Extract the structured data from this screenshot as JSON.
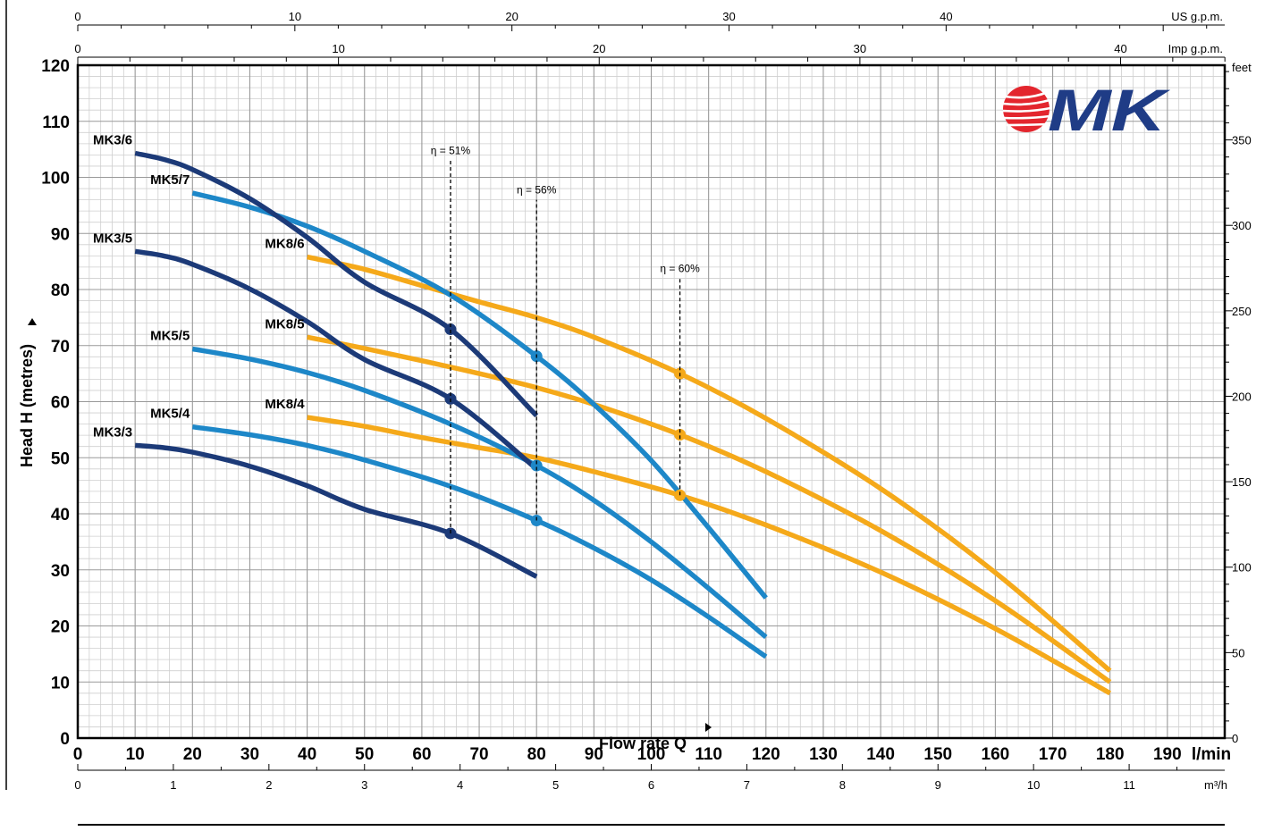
{
  "chart_data": {
    "type": "line",
    "ylabel": "Head H (metres)",
    "xlabel": "Flow rate Q",
    "x_unit": "l/min",
    "xlim": [
      0,
      200
    ],
    "ylim": [
      0,
      120
    ],
    "x_ticks": [
      0,
      10,
      20,
      30,
      40,
      50,
      60,
      70,
      80,
      90,
      100,
      110,
      120,
      130,
      140,
      150,
      160,
      170,
      180,
      190
    ],
    "y_ticks": [
      0,
      10,
      20,
      30,
      40,
      50,
      60,
      70,
      80,
      90,
      100,
      110,
      120
    ],
    "grid": true,
    "secondary_axes": {
      "feet": {
        "label": "feet",
        "ticks": [
          0,
          50,
          100,
          150,
          200,
          250,
          300,
          350
        ]
      },
      "m3h": {
        "label": "m³/h",
        "ticks": [
          0,
          1,
          2,
          3,
          4,
          5,
          6,
          7,
          8,
          9,
          10,
          11
        ]
      },
      "us_gpm": {
        "label": "US g.p.m.",
        "ticks": [
          0,
          10,
          20,
          30,
          40
        ]
      },
      "imp_gpm": {
        "label": "Imp g.p.m.",
        "ticks": [
          0,
          10,
          20,
          30,
          40
        ]
      }
    },
    "series": [
      {
        "name": "MK3/6",
        "color": "#1c3a78",
        "x": [
          10,
          15,
          20,
          30,
          40,
          50,
          65,
          80
        ],
        "y": [
          104.3,
          103.2,
          101.4,
          96.2,
          89.3,
          81.3,
          72.9,
          57.5
        ],
        "marker_x": [
          65
        ]
      },
      {
        "name": "MK3/5",
        "color": "#1c3a78",
        "x": [
          10,
          15,
          20,
          30,
          40,
          50,
          65,
          80
        ],
        "y": [
          86.8,
          86.0,
          84.5,
          80.1,
          74.3,
          67.5,
          60.5,
          48.0
        ],
        "marker_x": [
          65
        ]
      },
      {
        "name": "MK3/3",
        "color": "#1c3a78",
        "x": [
          10,
          15,
          20,
          30,
          40,
          50,
          65,
          80
        ],
        "y": [
          52.2,
          51.8,
          51.0,
          48.5,
          45.0,
          40.8,
          36.5,
          28.8
        ],
        "marker_x": [
          65
        ]
      },
      {
        "name": "MK5/7",
        "color": "#1d87c8",
        "x": [
          20,
          30,
          40,
          50,
          65,
          80,
          90,
          100,
          110,
          120
        ],
        "y": [
          97.2,
          94.7,
          91.3,
          86.8,
          79.0,
          68.1,
          59.5,
          49.5,
          37.5,
          25.0
        ],
        "marker_x": [
          80
        ]
      },
      {
        "name": "MK5/5",
        "color": "#1d87c8",
        "x": [
          20,
          30,
          40,
          50,
          65,
          80,
          90,
          100,
          110,
          120
        ],
        "y": [
          69.4,
          67.6,
          65.2,
          62.0,
          56.0,
          48.6,
          42.4,
          35.0,
          26.7,
          18.0
        ],
        "marker_x": [
          80
        ]
      },
      {
        "name": "MK5/4",
        "color": "#1d87c8",
        "x": [
          20,
          30,
          40,
          50,
          65,
          80,
          90,
          100,
          110,
          120
        ],
        "y": [
          55.5,
          54.1,
          52.2,
          49.6,
          44.9,
          38.8,
          33.9,
          28.2,
          21.6,
          14.5
        ],
        "marker_x": [
          80
        ]
      },
      {
        "name": "MK8/6",
        "color": "#f5a91a",
        "x": [
          40,
          50,
          60,
          70,
          80,
          90,
          105,
          120,
          140,
          160,
          180
        ],
        "y": [
          85.8,
          83.6,
          80.7,
          77.8,
          75.0,
          71.5,
          65.0,
          57.0,
          44.5,
          29.5,
          12.0
        ],
        "marker_x": [
          105
        ]
      },
      {
        "name": "MK8/5",
        "color": "#f5a91a",
        "x": [
          40,
          50,
          60,
          70,
          80,
          90,
          105,
          120,
          140,
          160,
          180
        ],
        "y": [
          71.5,
          69.5,
          67.3,
          65.0,
          62.5,
          59.5,
          54.1,
          47.5,
          37.0,
          24.5,
          10.0
        ],
        "marker_x": [
          105
        ]
      },
      {
        "name": "MK8/4",
        "color": "#f5a91a",
        "x": [
          40,
          50,
          60,
          70,
          80,
          90,
          105,
          120,
          140,
          160,
          180
        ],
        "y": [
          57.2,
          55.6,
          53.6,
          51.8,
          50.0,
          47.5,
          43.3,
          38.0,
          29.6,
          19.5,
          8.0
        ],
        "marker_x": [
          105
        ]
      }
    ],
    "annotations": [
      {
        "text": "η = 51%",
        "x": 65,
        "y_from": 36.5,
        "y_to": 103
      },
      {
        "text": "η = 56%",
        "x": 80,
        "y_from": 38.8,
        "y_to": 96
      },
      {
        "text": "η = 60%",
        "x": 105,
        "y_from": 43.3,
        "y_to": 82
      }
    ]
  },
  "logo": {
    "text": "MK",
    "colors": {
      "red": "#e3262e",
      "blue": "#1f3c86"
    }
  },
  "colors": {
    "frame": "#000000",
    "grid_major": "#9a9a9a",
    "grid_minor": "#cfcfcf"
  }
}
